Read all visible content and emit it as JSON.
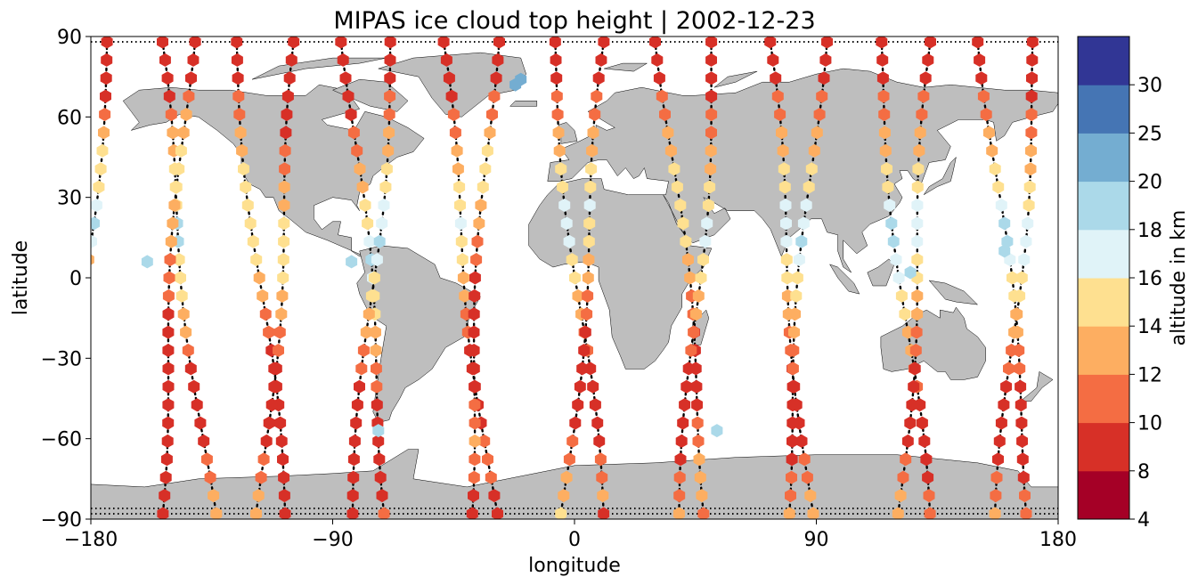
{
  "chart_data": {
    "type": "scatter",
    "title": "MIPAS ice cloud top height | 2002-12-23",
    "xlabel": "longitude",
    "ylabel": "latitude",
    "xlim": [
      -180,
      180
    ],
    "ylim": [
      -90,
      90
    ],
    "xticks": [
      -180,
      -90,
      0,
      90,
      180
    ],
    "xtick_labels": [
      "−180",
      "−90",
      "0",
      "90",
      "180"
    ],
    "yticks": [
      -90,
      -60,
      -30,
      0,
      30,
      60,
      90
    ],
    "ytick_labels": [
      "−90",
      "−60",
      "−30",
      "0",
      "30",
      "60",
      "90"
    ],
    "grid": false,
    "background_map": "world land masses (gray)",
    "land_color": "#bebebe",
    "colorbar": {
      "label": "altitude in km",
      "boundaries": [
        4,
        8,
        10,
        12,
        14,
        16,
        18,
        20,
        25,
        30
      ],
      "tick_labels": [
        "4",
        "8",
        "10",
        "12",
        "14",
        "16",
        "18",
        "20",
        "25",
        "30"
      ],
      "colors": [
        "#a50026",
        "#d73027",
        "#f46d43",
        "#fdae61",
        "#fee090",
        "#e0f3f8",
        "#abd9e9",
        "#74add1",
        "#4575b4",
        "#313695"
      ]
    },
    "marker": "hexagon",
    "track_marker": "black dots (measurement tracks without ice cloud)",
    "orbit_tracks": [
      {
        "lon": -174,
        "dlon": -8,
        "cloud_heights": [
          8,
          8,
          8,
          9,
          11,
          13,
          14,
          15,
          15,
          17,
          19,
          17,
          13,
          12,
          11,
          9,
          8,
          8,
          8,
          9,
          12,
          13,
          14,
          12,
          10,
          8,
          8
        ]
      },
      {
        "lon": -155,
        "dlon": 10,
        "cloud_heights": [
          8,
          8,
          8,
          9,
          10,
          12,
          13,
          14,
          14,
          15,
          18,
          19,
          15,
          14,
          14,
          13,
          12,
          11,
          9,
          8,
          8,
          8,
          9,
          10,
          11,
          12,
          13
        ]
      },
      {
        "lon": -143,
        "dlon": -6,
        "cloud_heights": [
          8,
          8,
          9,
          10,
          12,
          13,
          14,
          15,
          14,
          13,
          12,
          12,
          11,
          10,
          10,
          9,
          8,
          8,
          8,
          8,
          8,
          8,
          8,
          8,
          8,
          8,
          8
        ]
      },
      {
        "lon": -126,
        "dlon": 9,
        "cloud_heights": [
          8,
          8,
          9,
          10,
          11,
          12,
          13,
          14,
          14,
          15,
          15,
          15,
          14,
          13,
          12,
          11,
          10,
          9,
          8,
          8,
          8,
          8,
          9,
          9,
          8,
          8,
          8
        ]
      },
      {
        "lon": -103,
        "dlon": -7,
        "cloud_heights": [
          8,
          8,
          8,
          8,
          9,
          9,
          10,
          11,
          12,
          13,
          14,
          15,
          15,
          14,
          13,
          12,
          11,
          10,
          9,
          8,
          8,
          8,
          9,
          10,
          11,
          12,
          13
        ]
      },
      {
        "lon": -85,
        "dlon": 8,
        "cloud_heights": [
          8,
          8,
          8,
          9,
          9,
          10,
          11,
          12,
          13,
          14,
          15,
          17,
          18,
          16,
          15,
          14,
          13,
          12,
          11,
          10,
          9,
          8,
          8,
          8,
          8,
          9,
          10
        ]
      },
      {
        "lon": -68,
        "dlon": -7,
        "cloud_heights": [
          8,
          8,
          9,
          10,
          11,
          12,
          13,
          14,
          15,
          16,
          17,
          18,
          16,
          15,
          14,
          13,
          12,
          11,
          10,
          9,
          8,
          8,
          8,
          8,
          8,
          8,
          8
        ]
      },
      {
        "lon": -50,
        "dlon": 10,
        "cloud_heights": [
          8,
          8,
          8,
          9,
          10,
          11,
          12,
          13,
          14,
          15,
          16,
          15,
          14,
          13,
          12,
          11,
          10,
          9,
          8,
          8,
          8,
          9,
          10,
          11,
          10,
          9,
          8
        ]
      },
      {
        "lon": -30,
        "dlon": -5,
        "cloud_heights": [
          8,
          8,
          9,
          10,
          11,
          13,
          14,
          15,
          14,
          13,
          12,
          11,
          10,
          9,
          8,
          8,
          8,
          8,
          8,
          9,
          10,
          11,
          12,
          11,
          10,
          9,
          8
        ]
      },
      {
        "lon": -8,
        "dlon": 9,
        "cloud_heights": [
          8,
          8,
          9,
          10,
          11,
          12,
          13,
          14,
          15,
          16,
          17,
          16,
          15,
          14,
          13,
          12,
          11,
          10,
          9,
          8,
          8,
          8,
          9,
          10,
          11,
          12,
          8
        ]
      },
      {
        "lon": 12,
        "dlon": -8,
        "cloud_heights": [
          8,
          8,
          9,
          10,
          11,
          12,
          13,
          14,
          15,
          16,
          15,
          14,
          13,
          12,
          11,
          10,
          9,
          8,
          8,
          8,
          8,
          9,
          10,
          11,
          12,
          13,
          14
        ]
      },
      {
        "lon": 32,
        "dlon": 9,
        "cloud_heights": [
          8,
          8,
          9,
          10,
          11,
          12,
          13,
          14,
          15,
          15,
          15,
          14,
          13,
          12,
          11,
          10,
          9,
          8,
          8,
          8,
          9,
          10,
          11,
          12,
          13,
          12,
          11
        ]
      },
      {
        "lon": 52,
        "dlon": -6,
        "cloud_heights": [
          8,
          8,
          8,
          9,
          10,
          11,
          12,
          13,
          14,
          15,
          17,
          16,
          15,
          14,
          13,
          12,
          11,
          10,
          9,
          8,
          8,
          8,
          8,
          9,
          10,
          11,
          12
        ]
      },
      {
        "lon": 72,
        "dlon": 8,
        "cloud_heights": [
          8,
          8,
          9,
          10,
          11,
          12,
          13,
          14,
          15,
          16,
          17,
          16,
          15,
          14,
          13,
          12,
          11,
          10,
          9,
          8,
          8,
          8,
          9,
          10,
          11,
          12,
          13
        ]
      },
      {
        "lon": 92,
        "dlon": -7,
        "cloud_heights": [
          8,
          8,
          9,
          10,
          11,
          12,
          13,
          14,
          15,
          16,
          17,
          18,
          17,
          15,
          14,
          13,
          12,
          11,
          10,
          9,
          8,
          8,
          8,
          9,
          10,
          11,
          12
        ]
      },
      {
        "lon": 113,
        "dlon": 9,
        "cloud_heights": [
          8,
          8,
          9,
          10,
          11,
          12,
          13,
          14,
          15,
          17,
          19,
          18,
          17,
          16,
          15,
          14,
          13,
          12,
          11,
          10,
          9,
          8,
          8,
          8,
          9,
          10,
          11
        ]
      },
      {
        "lon": 133,
        "dlon": -6,
        "cloud_heights": [
          8,
          8,
          9,
          10,
          11,
          12,
          13,
          14,
          15,
          16,
          17,
          16,
          15,
          14,
          13,
          12,
          11,
          10,
          9,
          8,
          8,
          8,
          9,
          10,
          11,
          12,
          13
        ]
      },
      {
        "lon": 152,
        "dlon": 9,
        "cloud_heights": [
          8,
          8,
          9,
          10,
          11,
          12,
          13,
          14,
          15,
          17,
          19,
          18,
          17,
          15,
          14,
          13,
          12,
          11,
          10,
          9,
          8,
          8,
          8,
          8,
          9,
          10,
          11
        ]
      },
      {
        "lon": 172,
        "dlon": -7,
        "cloud_heights": [
          8,
          8,
          8,
          9,
          10,
          11,
          12,
          13,
          14,
          15,
          16,
          17,
          16,
          15,
          14,
          13,
          12,
          11,
          10,
          9,
          8,
          8,
          8,
          9,
          10,
          11,
          12
        ]
      }
    ],
    "highlight_points": [
      {
        "lon": -22,
        "lat": 72,
        "value": 22
      },
      {
        "lon": -20,
        "lat": 74,
        "value": 21
      },
      {
        "lon": 125,
        "lat": 2,
        "value": 19
      },
      {
        "lon": 160,
        "lat": 10,
        "value": 19
      },
      {
        "lon": 53,
        "lat": -57,
        "value": 19
      },
      {
        "lon": -73,
        "lat": -57,
        "value": 19
      },
      {
        "lon": -159,
        "lat": 6,
        "value": 19
      },
      {
        "lon": -83,
        "lat": 6,
        "value": 19
      }
    ]
  }
}
